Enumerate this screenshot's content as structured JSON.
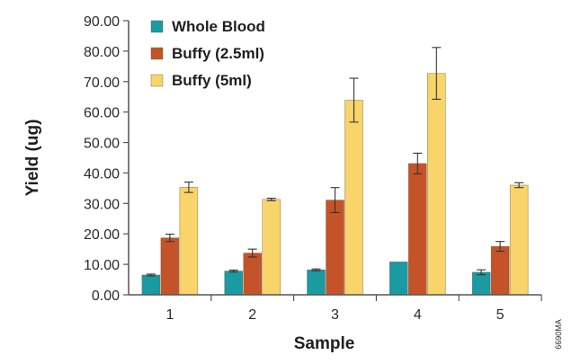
{
  "chart_data": {
    "type": "bar",
    "categories": [
      "1",
      "2",
      "3",
      "4",
      "5"
    ],
    "series": [
      {
        "name": "Whole Blood",
        "color": "#1a9aa3",
        "values": [
          6.5,
          7.8,
          8.2,
          10.8,
          7.4
        ],
        "errors": [
          0.3,
          0.3,
          0.3,
          0,
          0.8
        ]
      },
      {
        "name": "Buffy (2.5ml)",
        "color": "#c4532a",
        "values": [
          18.7,
          13.7,
          31.1,
          43.1,
          15.9
        ],
        "errors": [
          1.2,
          1.3,
          4.1,
          3.4,
          1.6
        ]
      },
      {
        "name": "Buffy (5ml)",
        "color": "#f8d46a",
        "values": [
          35.3,
          31.3,
          63.9,
          72.7,
          36.0
        ],
        "errors": [
          1.7,
          0.4,
          7.2,
          8.5,
          0.8
        ]
      }
    ],
    "xlabel": "Sample",
    "ylabel": "Yield (ug)",
    "ylim": [
      0,
      90
    ],
    "yticks": [
      "0.00",
      "10.00",
      "20.00",
      "30.00",
      "40.00",
      "50.00",
      "60.00",
      "70.00",
      "80.00",
      "90.00"
    ],
    "grid": false,
    "legend_position": "top-left",
    "side_code": "6690MA"
  }
}
